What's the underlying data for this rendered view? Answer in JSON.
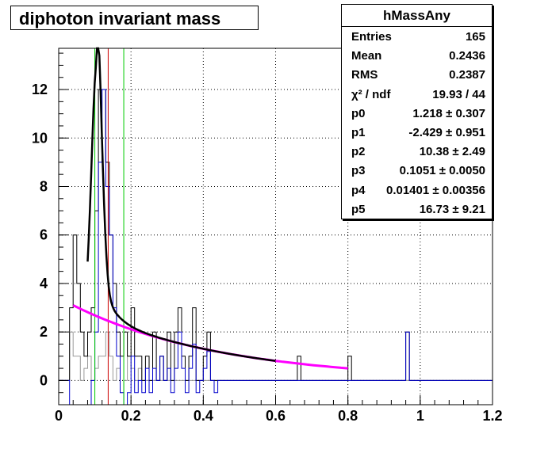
{
  "chart_data": {
    "type": "line",
    "title": "diphoton invariant mass",
    "xlim": [
      0,
      1.2
    ],
    "ylim": [
      -1,
      13.7
    ],
    "x_ticks": [
      0,
      0.2,
      0.4,
      0.6,
      0.8,
      1,
      1.2
    ],
    "x_tick_labels": [
      "0",
      "0.2",
      "0.4",
      "0.6",
      "0.8",
      "1",
      "1.2"
    ],
    "y_ticks": [
      0,
      2,
      4,
      6,
      8,
      10,
      12
    ],
    "y_tick_labels": [
      "0",
      "2",
      "4",
      "6",
      "8",
      "10",
      "12"
    ],
    "grid": true,
    "vertical_markers": [
      {
        "x": 0.1,
        "color": "#00cc00"
      },
      {
        "x": 0.1369,
        "color": "#cc0000"
      },
      {
        "x": 0.18,
        "color": "#00cc00"
      }
    ],
    "histogram": {
      "bin_width": 0.01,
      "x_start": 0.0,
      "black": [
        0,
        0,
        0,
        3,
        6,
        4,
        2,
        1,
        2,
        3,
        7,
        12,
        12,
        9,
        6,
        4,
        2,
        1,
        2,
        1,
        3,
        1,
        1,
        0,
        1,
        0,
        2,
        0,
        1,
        0,
        2,
        0,
        2,
        3,
        1,
        0,
        1,
        3,
        0,
        0,
        1,
        2,
        0,
        0,
        0,
        0,
        0,
        0,
        0,
        0,
        0,
        0,
        0,
        0,
        0,
        0,
        0,
        0,
        0,
        0,
        0,
        0,
        0,
        0,
        0,
        0,
        1,
        0,
        0,
        0,
        0,
        0,
        0,
        0,
        0,
        0,
        0,
        0,
        0,
        0,
        1,
        0,
        0,
        0,
        0,
        0,
        0,
        0,
        0,
        0,
        0,
        0,
        0,
        0,
        0,
        0,
        2,
        0,
        0,
        0,
        0,
        0,
        0,
        0,
        0,
        0,
        0,
        0,
        0,
        0,
        0,
        0,
        0,
        0,
        0,
        0,
        0,
        0,
        0,
        0
      ],
      "blue": [
        0,
        0,
        0,
        -1,
        -1,
        -1,
        -1,
        -1,
        -1,
        0,
        2,
        9,
        12,
        8,
        6,
        3,
        1,
        -0.5,
        -1,
        -0.5,
        1,
        -0.5,
        0,
        -0.5,
        0.5,
        -0.5,
        0.5,
        0,
        1,
        0,
        0.5,
        -0.5,
        0.5,
        2,
        0.5,
        -0.5,
        0.5,
        1.5,
        -0.5,
        0,
        0.5,
        1.2,
        0,
        -0.5,
        0,
        0,
        0,
        0,
        0,
        0,
        0,
        0,
        0,
        0,
        0,
        0,
        0,
        0,
        0,
        0,
        0,
        0,
        0,
        0,
        0,
        0,
        0,
        0,
        0,
        0,
        0,
        0,
        0,
        0,
        0,
        0,
        0,
        0,
        0,
        0,
        0,
        0,
        0,
        0,
        0,
        0,
        0,
        0,
        0,
        0,
        0,
        0,
        0,
        0,
        0,
        0,
        2,
        0,
        0,
        0,
        0,
        0,
        0,
        0,
        0,
        0,
        0,
        0,
        0,
        0,
        0,
        0,
        0,
        0,
        0,
        0,
        0,
        0,
        0,
        0
      ],
      "grey": [
        0,
        0,
        0,
        2,
        1,
        1,
        0,
        0.5,
        1,
        0,
        0.5,
        1,
        1,
        2,
        1,
        0,
        0.5,
        -0.5,
        0,
        1,
        0.5,
        0,
        0.5,
        0,
        0,
        0,
        0,
        0,
        0,
        0,
        0,
        0,
        0,
        0,
        0,
        0,
        0,
        0,
        0,
        0,
        0,
        0,
        0,
        0,
        0,
        0,
        0,
        0,
        0,
        0,
        0,
        0,
        0,
        0,
        0,
        0,
        0,
        0,
        0,
        0,
        0,
        0,
        0,
        0,
        0,
        0,
        0,
        0,
        0,
        0,
        0,
        0,
        0,
        0,
        0,
        0,
        0,
        0,
        0,
        0,
        0,
        0,
        0,
        0,
        0,
        0,
        0,
        0,
        0,
        0,
        0,
        0,
        0,
        0,
        0,
        0,
        0,
        0,
        0,
        0,
        0,
        0,
        0,
        0,
        0,
        0,
        0,
        0,
        0,
        0,
        0,
        0,
        0,
        0,
        0,
        0,
        0,
        0,
        0,
        0
      ]
    },
    "fit_function": {
      "color": "#000000",
      "form": "pol2 + gaussian",
      "p0": 1.218,
      "p1": -2.429,
      "p2": 10.38,
      "p3": 0.1051,
      "p4": 0.01401,
      "p5": 16.73
    },
    "background_curve": {
      "color": "#ff00ff",
      "x_range": [
        0.04,
        0.8
      ],
      "form": "exponential",
      "y_at_start": 3.1,
      "y_at_end": 0.5
    },
    "legend": "none"
  },
  "title_box": {
    "text": "diphoton invariant mass"
  },
  "stats_box": {
    "name": "hMassAny",
    "rows": [
      {
        "key": "Entries",
        "value": "165"
      },
      {
        "key": "Mean",
        "value": "0.2436"
      },
      {
        "key": "RMS",
        "value": "0.2387"
      },
      {
        "key": "χ² / ndf",
        "value": "19.93 / 44"
      },
      {
        "key": "p0",
        "value": "1.218 ± 0.307"
      },
      {
        "key": "p1",
        "value": "-2.429 ± 0.951"
      },
      {
        "key": "p2",
        "value": "10.38 ± 2.49"
      },
      {
        "key": "p3",
        "value": "0.1051 ± 0.0050"
      },
      {
        "key": "p4",
        "value": "0.01401 ± 0.00356"
      },
      {
        "key": "p5",
        "value": "16.73 ± 9.21"
      }
    ]
  }
}
